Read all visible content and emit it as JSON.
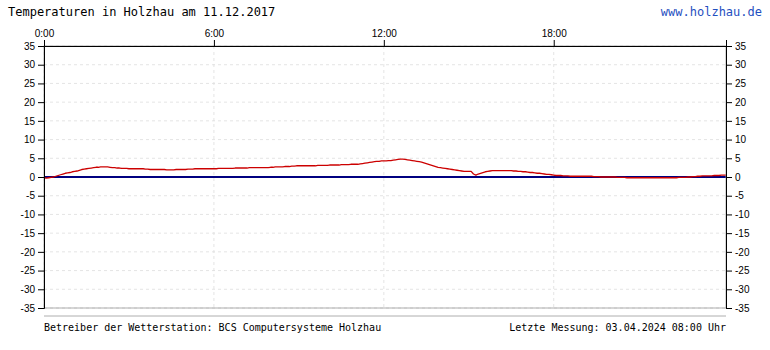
{
  "chart_data": {
    "type": "line",
    "title": "Temperaturen in Holzhau am 11.12.2017",
    "annotations": [
      "www.holzhau.de",
      "Betreiber der Wetterstation: BCS Computersysteme Holzhau",
      "Letzte Messung: 03.04.2024 08:00 Uhr"
    ],
    "categories": [
      "0:00",
      null,
      null,
      null,
      null,
      null,
      null,
      null,
      null,
      null,
      null,
      null,
      null,
      null,
      null,
      null,
      null,
      null,
      null,
      null,
      null,
      null,
      null,
      null,
      null,
      null,
      null,
      null,
      null,
      null,
      null,
      null,
      null,
      null,
      null,
      null,
      null,
      null,
      null,
      null,
      null,
      null,
      null,
      null,
      null,
      null,
      null,
      null,
      null,
      null,
      null,
      null,
      null,
      null,
      null,
      null,
      null,
      null,
      null,
      null,
      null,
      null,
      null,
      null,
      null,
      null,
      null,
      null,
      null,
      null,
      null,
      null,
      "6:00",
      null,
      null,
      null,
      null,
      null,
      null,
      null,
      null,
      null,
      null,
      null,
      null,
      null,
      null,
      null,
      null,
      null,
      null,
      null,
      null,
      null,
      null,
      null,
      null,
      null,
      null,
      null,
      null,
      null,
      null,
      null,
      null,
      null,
      null,
      null,
      null,
      null,
      null,
      null,
      null,
      null,
      null,
      null,
      null,
      null,
      null,
      null,
      null,
      null,
      null,
      null,
      null,
      null,
      null,
      null,
      null,
      null,
      null,
      null,
      null,
      null,
      null,
      null,
      null,
      null,
      null,
      null,
      null,
      null,
      null,
      null,
      "12:00",
      null,
      null,
      null,
      null,
      null,
      null,
      null,
      null,
      null,
      null,
      null,
      null,
      null,
      null,
      null,
      null,
      null,
      null,
      null,
      null,
      null,
      null,
      null,
      null,
      null,
      null,
      null,
      null,
      null,
      null,
      null,
      null,
      null,
      null,
      null,
      null,
      null,
      null,
      null,
      null,
      null,
      null,
      null,
      null,
      null,
      null,
      null,
      null,
      null,
      null,
      null,
      null,
      null,
      null,
      null,
      null,
      null,
      null,
      null,
      null,
      null,
      null,
      null,
      null,
      null,
      null,
      null,
      null,
      null,
      null,
      null,
      "18:00",
      null,
      null,
      null,
      null,
      null,
      null,
      null,
      null,
      null,
      null,
      null,
      null,
      null,
      null,
      null,
      null,
      null,
      null,
      null,
      null,
      null,
      null,
      null,
      null,
      null,
      null,
      null,
      null,
      null,
      null,
      null,
      null,
      null,
      null,
      null,
      null,
      null,
      null,
      null,
      null,
      null,
      null,
      null,
      null,
      null,
      null,
      null,
      null,
      null,
      null,
      null,
      null,
      null,
      null,
      null,
      null,
      null,
      null,
      null,
      null,
      null,
      null,
      null,
      null,
      null,
      null,
      null,
      null,
      null,
      null,
      null,
      null,
      null
    ],
    "series": [
      {
        "color": "#000080",
        "values": [
          0.0,
          0.0,
          0.0,
          0.0,
          0.0,
          0.0,
          0.0,
          0.0,
          0.0,
          0.0,
          0.0,
          0.0,
          0.0,
          0.0,
          0.0,
          0.0,
          0.0,
          0.0,
          0.0,
          0.0,
          0.0,
          0.0,
          0.0,
          0.0,
          0.0,
          0.0,
          0.0,
          0.0,
          0.0,
          0.0,
          0.0,
          0.0,
          0.0,
          0.0,
          0.0,
          0.0,
          0.0,
          0.0,
          0.0,
          0.0,
          0.0,
          0.0,
          0.0,
          0.0,
          0.0,
          0.0,
          0.0,
          0.0,
          0.0,
          0.0,
          0.0,
          0.0,
          0.0,
          0.0,
          0.0,
          0.0,
          0.0,
          0.0,
          0.0,
          0.0,
          0.0,
          0.0,
          0.0,
          0.0,
          0.0,
          0.0,
          0.0,
          0.0,
          0.0,
          0.0,
          0.0,
          0.0,
          0.0,
          0.0,
          0.0,
          0.0,
          0.0,
          0.0,
          0.0,
          0.0,
          0.0,
          0.0,
          0.0,
          0.0,
          0.0,
          0.0,
          0.0,
          0.0,
          0.0,
          0.0,
          0.0,
          0.0,
          0.0,
          0.0,
          0.0,
          0.0,
          0.0,
          0.0,
          0.0,
          0.0,
          0.0,
          0.0,
          0.0,
          0.0,
          0.0,
          0.0,
          0.0,
          0.0,
          0.0,
          0.0,
          0.0,
          0.0,
          0.0,
          0.0,
          0.0,
          0.0,
          0.0,
          0.0,
          0.0,
          0.0,
          0.0,
          0.0,
          0.0,
          0.0,
          0.0,
          0.0,
          0.0,
          0.0,
          0.0,
          0.0,
          0.0,
          0.0,
          0.0,
          0.0,
          0.0,
          0.0,
          0.0,
          0.0,
          0.0,
          0.0,
          0.0,
          0.0,
          0.0,
          0.0,
          0.0,
          0.0,
          0.0,
          0.0,
          0.0,
          0.0,
          0.0,
          0.0,
          0.0,
          0.0,
          0.0,
          0.0,
          0.0,
          0.0,
          0.0,
          0.0,
          0.0,
          0.0,
          0.0,
          0.0,
          0.0,
          0.0,
          0.0,
          0.0,
          0.0,
          0.0,
          0.0,
          0.0,
          0.0,
          0.0,
          0.0,
          0.0,
          0.0,
          0.0,
          0.0,
          0.0,
          0.0,
          0.0,
          0.0,
          0.0,
          0.0,
          0.0,
          0.0,
          0.0,
          0.0,
          0.0,
          0.0,
          0.0,
          0.0,
          0.0,
          0.0,
          0.0,
          0.0,
          0.0,
          0.0,
          0.0,
          0.0,
          0.0,
          0.0,
          0.0,
          0.0,
          0.0,
          0.0,
          0.0,
          0.0,
          0.0,
          0.0,
          0.0,
          0.0,
          0.0,
          0.0,
          0.0,
          0.0,
          0.0,
          0.0,
          0.0,
          0.0,
          0.0,
          0.0,
          0.0,
          0.0,
          0.0,
          0.0,
          0.0,
          0.0,
          0.0,
          0.0,
          0.0,
          0.0,
          0.0,
          0.0,
          0.0,
          0.0,
          0.0,
          0.0,
          0.0,
          0.0,
          0.0,
          0.0,
          0.0,
          0.0,
          0.0,
          0.0,
          0.0,
          0.0,
          0.0,
          0.0,
          0.0,
          0.0,
          0.0,
          0.0,
          0.0,
          0.0,
          0.0,
          0.0,
          0.0,
          0.0,
          0.0,
          0.0,
          0.0,
          0.0,
          0.0,
          0.0,
          0.0,
          0.0,
          0.0,
          0.0,
          0.0,
          0.0,
          0.0,
          0.0,
          0.0,
          0.0,
          0.0,
          0.0,
          0.0,
          0.0,
          0.0,
          0.0,
          0.0,
          0.0,
          0.0,
          0.0,
          0.0,
          0.0,
          0.0
        ]
      },
      {
        "color": "#cc0000",
        "values": [
          -0.2,
          -0.3,
          -0.2,
          -0.1,
          0.0,
          0.2,
          0.4,
          0.6,
          0.8,
          1.0,
          1.1,
          1.2,
          1.4,
          1.5,
          1.6,
          1.8,
          2.0,
          2.1,
          2.2,
          2.3,
          2.4,
          2.5,
          2.6,
          2.6,
          2.7,
          2.7,
          2.7,
          2.7,
          2.6,
          2.5,
          2.5,
          2.4,
          2.4,
          2.3,
          2.3,
          2.3,
          2.2,
          2.2,
          2.2,
          2.2,
          2.2,
          2.2,
          2.2,
          2.1,
          2.1,
          2.0,
          2.0,
          2.0,
          2.0,
          2.0,
          2.0,
          2.0,
          1.9,
          1.9,
          1.9,
          1.9,
          2.0,
          2.0,
          2.0,
          2.0,
          2.0,
          2.1,
          2.1,
          2.1,
          2.2,
          2.2,
          2.2,
          2.2,
          2.2,
          2.2,
          2.2,
          2.2,
          2.2,
          2.2,
          2.3,
          2.3,
          2.3,
          2.3,
          2.3,
          2.3,
          2.3,
          2.4,
          2.4,
          2.4,
          2.4,
          2.4,
          2.4,
          2.5,
          2.5,
          2.5,
          2.5,
          2.5,
          2.5,
          2.5,
          2.5,
          2.5,
          2.6,
          2.6,
          2.7,
          2.7,
          2.7,
          2.7,
          2.8,
          2.8,
          2.8,
          2.9,
          2.9,
          3.0,
          3.0,
          3.0,
          3.0,
          3.0,
          3.0,
          3.0,
          3.0,
          3.0,
          3.1,
          3.1,
          3.1,
          3.1,
          3.1,
          3.2,
          3.2,
          3.2,
          3.2,
          3.2,
          3.3,
          3.3,
          3.3,
          3.3,
          3.4,
          3.4,
          3.4,
          3.4,
          3.5,
          3.6,
          3.7,
          3.8,
          3.9,
          4.0,
          4.1,
          4.2,
          4.2,
          4.3,
          4.3,
          4.3,
          4.4,
          4.4,
          4.5,
          4.6,
          4.7,
          4.8,
          4.8,
          4.7,
          4.6,
          4.5,
          4.4,
          4.3,
          4.2,
          4.1,
          4.0,
          3.8,
          3.6,
          3.4,
          3.2,
          3.0,
          2.8,
          2.6,
          2.5,
          2.4,
          2.3,
          2.2,
          2.1,
          2.0,
          1.9,
          1.8,
          1.7,
          1.6,
          1.5,
          1.5,
          1.5,
          1.5,
          0.8,
          0.5,
          0.8,
          1.0,
          1.2,
          1.4,
          1.5,
          1.6,
          1.7,
          1.7,
          1.7,
          1.7,
          1.7,
          1.7,
          1.7,
          1.7,
          1.7,
          1.6,
          1.6,
          1.5,
          1.5,
          1.4,
          1.4,
          1.3,
          1.2,
          1.2,
          1.1,
          1.0,
          1.0,
          0.9,
          0.8,
          0.7,
          0.7,
          0.6,
          0.5,
          0.4,
          0.4,
          0.4,
          0.3,
          0.3,
          0.3,
          0.2,
          0.2,
          0.2,
          0.2,
          0.2,
          0.2,
          0.2,
          0.2,
          0.2,
          0.2,
          0.1,
          0.1,
          0.1,
          0.0,
          0.0,
          0.0,
          0.0,
          0.0,
          0.0,
          0.0,
          -0.1,
          -0.1,
          -0.1,
          -0.1,
          -0.2,
          -0.2,
          -0.2,
          -0.2,
          -0.2,
          -0.2,
          -0.2,
          -0.2,
          -0.2,
          -0.2,
          -0.2,
          -0.2,
          -0.2,
          -0.2,
          -0.2,
          -0.2,
          -0.2,
          -0.2,
          -0.2,
          -0.2,
          -0.2,
          -0.2,
          -0.1,
          -0.1,
          -0.1,
          -0.1,
          0.0,
          0.0,
          0.1,
          0.1,
          0.2,
          0.2,
          0.3,
          0.3,
          0.3,
          0.3,
          0.3,
          0.4,
          0.4,
          0.4,
          0.5,
          0.5,
          0.5
        ]
      }
    ],
    "ylim": [
      -35,
      35
    ],
    "yticks": [
      -35,
      -30,
      -25,
      -20,
      -15,
      -10,
      -5,
      0,
      5,
      10,
      15,
      20,
      25,
      30,
      35
    ],
    "grid": true
  }
}
